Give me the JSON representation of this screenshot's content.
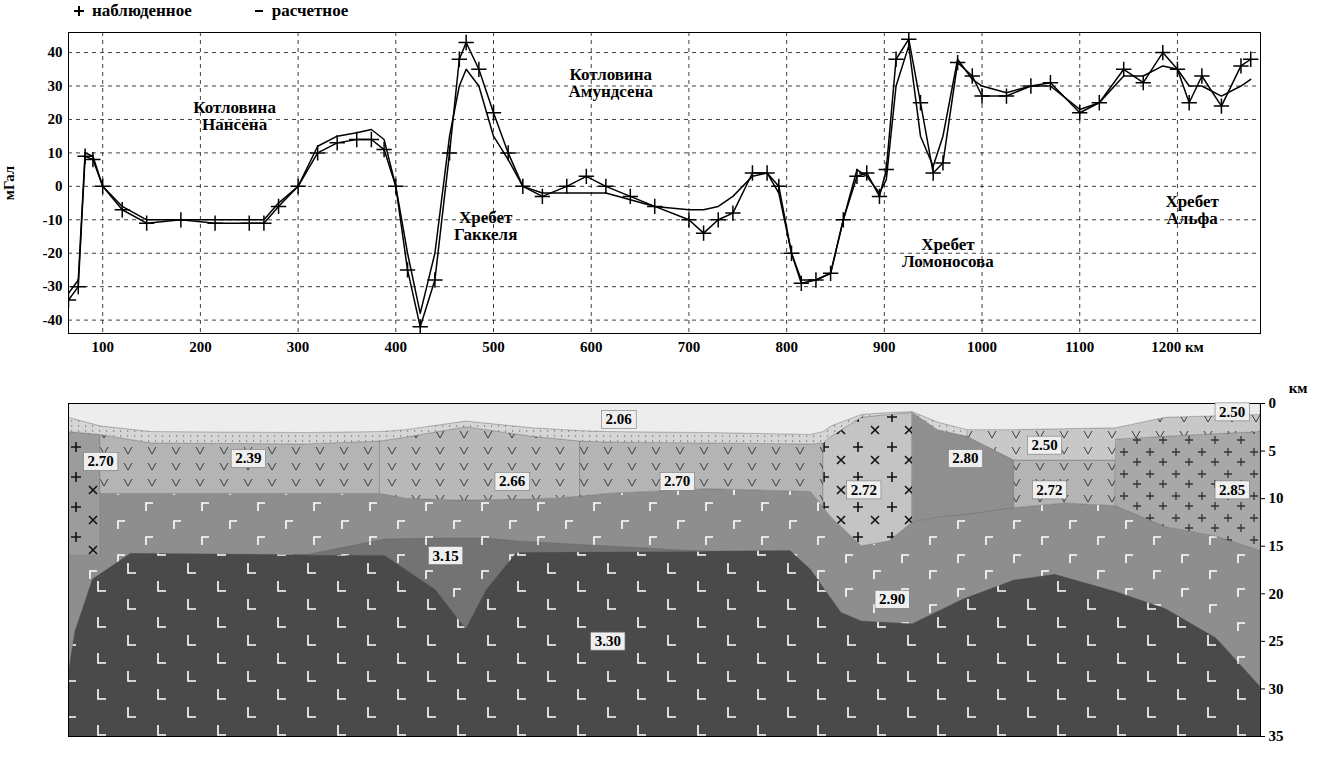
{
  "chart_data": [
    {
      "type": "line",
      "x": [
        65,
        75,
        82,
        90,
        100,
        120,
        145,
        180,
        215,
        250,
        265,
        280,
        300,
        320,
        340,
        360,
        375,
        388,
        400,
        412,
        425,
        440,
        455,
        465,
        472,
        485,
        500,
        515,
        530,
        550,
        575,
        595,
        615,
        640,
        665,
        700,
        715,
        730,
        745,
        765,
        780,
        792,
        805,
        815,
        830,
        845,
        858,
        872,
        882,
        895,
        902,
        912,
        925,
        937,
        950,
        960,
        975,
        990,
        1000,
        1025,
        1050,
        1070,
        1100,
        1120,
        1145,
        1165,
        1185,
        1200,
        1212,
        1225,
        1245,
        1265,
        1275
      ],
      "series": [
        {
          "name": "наблюденное",
          "color": "#000000",
          "marker": "plus",
          "line_style": "solid",
          "values": [
            -34,
            -30,
            9,
            8,
            0,
            -7,
            -11,
            -10,
            -11,
            -11,
            -11,
            -6,
            0,
            10,
            13,
            14,
            14,
            11,
            0,
            -25,
            -42,
            -28,
            10,
            38,
            43,
            35,
            22,
            10,
            0,
            -3,
            0,
            3,
            0,
            -3,
            -6,
            -10,
            -14,
            -10,
            -8,
            4,
            4,
            0,
            -20,
            -29,
            -28,
            -26,
            -10,
            3,
            4,
            -3,
            5,
            38,
            44,
            25,
            4,
            7,
            37,
            33,
            27,
            27,
            30,
            31,
            22,
            25,
            35,
            31,
            40,
            35,
            25,
            33,
            24,
            36,
            38
          ]
        },
        {
          "name": "расчетное",
          "color": "#000000",
          "marker": "none",
          "line_style": "solid",
          "values": [
            -32,
            -28,
            10,
            9,
            0,
            -6,
            -10,
            -10,
            -10,
            -10,
            -10,
            -5,
            0,
            12,
            15,
            16,
            17,
            14,
            0,
            -20,
            -38,
            -20,
            15,
            30,
            35,
            30,
            15,
            8,
            0,
            -2,
            -2,
            -2,
            -2,
            -4,
            -6,
            -7,
            -7,
            -6,
            -3,
            3,
            4,
            -2,
            -20,
            -28,
            -28,
            -26,
            -10,
            5,
            3,
            -2,
            2,
            30,
            42,
            15,
            6,
            15,
            38,
            32,
            30,
            28,
            30,
            30,
            23,
            25,
            33,
            33,
            36,
            35,
            30,
            30,
            27,
            30,
            32
          ]
        }
      ],
      "xlim": [
        65,
        1285
      ],
      "xticks": [
        100,
        200,
        300,
        400,
        500,
        600,
        700,
        800,
        900,
        1000,
        1100,
        {
          "value": 1200,
          "label": "1200 км"
        }
      ],
      "ylim": [
        -44,
        46
      ],
      "yticks": [
        -40,
        -30,
        -20,
        -10,
        0,
        10,
        20,
        30,
        40
      ],
      "y_label": "мГал",
      "grid": true,
      "legend": "top-left",
      "annotations": [
        {
          "text": "Котловина\nНансена",
          "x": 235,
          "y": 21
        },
        {
          "text": "Хребет\nГаккеля",
          "x": 492,
          "y": -12
        },
        {
          "text": "Котловина\nАмундсена",
          "x": 620,
          "y": 31
        },
        {
          "text": "Хребет\nЛомоносова",
          "x": 965,
          "y": -20
        },
        {
          "text": "Хребет\nАльфа",
          "x": 1215,
          "y": -7
        }
      ]
    },
    {
      "type": "section",
      "xlim": [
        65,
        1285
      ],
      "ylim": [
        0,
        35
      ],
      "yticks": [
        0,
        5,
        10,
        15,
        20,
        25,
        30,
        35
      ],
      "y_label": "км",
      "tick_labels": "y",
      "areas": [
        {
          "color": "#8e8e8e",
          "marker": "corner",
          "x": [
            65,
            98,
            98,
            389,
            410,
            460,
            565,
            617,
            720,
            825,
            846,
            877,
            905,
            929,
            981,
            1033,
            1085,
            1137,
            1188,
            1240,
            1285
          ],
          "top": [
            16,
            16,
            9.5,
            9.5,
            10,
            10.2,
            10,
            9.5,
            9,
            9.3,
            12,
            15,
            14.5,
            12.5,
            11.5,
            11,
            10.5,
            10.8,
            13,
            14,
            15.5
          ],
          "bottom": [
            35,
            35,
            35,
            35,
            35,
            35,
            35,
            35,
            35,
            35,
            35,
            35,
            35,
            35,
            35,
            35,
            35,
            35,
            35,
            35,
            35
          ]
        },
        {
          "color": "#4a4a4a",
          "marker": "L",
          "x": [
            65,
            72,
            90,
            129,
            389,
            441,
            472,
            493,
            524,
            804,
            825,
            856,
            877,
            929,
            981,
            1033,
            1075,
            1137,
            1188,
            1240,
            1285
          ],
          "top": [
            28.5,
            24,
            18.5,
            15.8,
            16,
            19.6,
            23.7,
            19.6,
            15.7,
            15.5,
            17.5,
            22,
            22.9,
            23.2,
            20.6,
            18.6,
            18,
            19.8,
            21.6,
            24.7,
            29.8
          ],
          "bottom": [
            35,
            35,
            35,
            35,
            35,
            35,
            35,
            35,
            35,
            35,
            35,
            35,
            35,
            35,
            35,
            35,
            35,
            35,
            35,
            35,
            35
          ]
        },
        {
          "color": "#737373",
          "marker": "corner",
          "x": [
            306,
            389,
            441,
            472,
            493,
            524,
            721
          ],
          "top": [
            16,
            14.3,
            14.2,
            14.2,
            14.2,
            14.5,
            15.6
          ],
          "bottom": [
            16,
            16,
            19.6,
            23.7,
            19.6,
            15.7,
            15.6
          ]
        },
        {
          "color": "#9c9c9c",
          "marker": "cross",
          "x": [
            65,
            98
          ],
          "top": [
            3,
            3.3
          ],
          "bottom": [
            16,
            16
          ]
        },
        {
          "color": "#b4b4b4",
          "marker": "v",
          "x": [
            98,
            150,
            306,
            384
          ],
          "top": [
            3.3,
            4.2,
            4.3,
            4.0
          ],
          "bottom": [
            9.5,
            9.5,
            9.5,
            9.5
          ]
        },
        {
          "color": "#b9b9b9",
          "marker": "v",
          "x": [
            384,
            410,
            472,
            540,
            589
          ],
          "top": [
            4.0,
            3.6,
            2.5,
            3.5,
            4.0
          ],
          "bottom": [
            9.5,
            10,
            10.2,
            10.1,
            9.8
          ]
        },
        {
          "color": "#b4b4b4",
          "marker": "v",
          "x": [
            589,
            617,
            720,
            825,
            838
          ],
          "top": [
            4.0,
            4.1,
            4.2,
            4.3,
            4.2
          ],
          "bottom": [
            9.8,
            9.5,
            9,
            9.3,
            11
          ]
        },
        {
          "color": "#c4c4c4",
          "marker": "cross",
          "x": [
            838,
            846,
            877,
            905,
            929
          ],
          "top": [
            4.2,
            3.5,
            1.5,
            1.2,
            1.0
          ],
          "bottom": [
            11,
            12,
            15,
            14.5,
            12.5
          ]
        },
        {
          "color": "#8f8f8f",
          "marker": "none",
          "x": [
            929,
            955,
            985,
            1033
          ],
          "top": [
            1.0,
            2.8,
            3.5,
            6.0
          ],
          "bottom": [
            12.5,
            12,
            11.7,
            11
          ]
        },
        {
          "color": "#b4b4b4",
          "marker": "v",
          "x": [
            1033,
            1085,
            1137
          ],
          "top": [
            6.0,
            6.0,
            6.0
          ],
          "bottom": [
            11,
            10.5,
            10.8
          ]
        },
        {
          "color": "#a8a8a8",
          "marker": "plus",
          "x": [
            1137,
            1188,
            1240,
            1285
          ],
          "top": [
            3.8,
            3.5,
            3.2,
            3.0
          ],
          "bottom": [
            10.8,
            13,
            14,
            15.5
          ]
        },
        {
          "color": "#c8c8c8",
          "marker": "v",
          "x": [
            985,
            1033,
            1137,
            1137,
            1188,
            1285
          ],
          "top": [
            2.8,
            2.8,
            2.6,
            2.6,
            1.5,
            1.2
          ],
          "bottom": [
            3.5,
            6.0,
            6.0,
            3.8,
            3.5,
            3.0
          ]
        },
        {
          "color": "#d6d6d6",
          "marker": "dots",
          "x": [
            65,
            98,
            150,
            306,
            384,
            410,
            472,
            540,
            589,
            617,
            720,
            825,
            838,
            846,
            877,
            905,
            929,
            955,
            985
          ],
          "top": [
            1.5,
            2.4,
            3.0,
            3.1,
            3.0,
            2.8,
            1.9,
            2.6,
            2.9,
            3.0,
            3.1,
            3.3,
            3.0,
            2.4,
            1.2,
            1.0,
            0.9,
            2.0,
            2.8
          ],
          "bottom": [
            3,
            3.3,
            4.2,
            4.3,
            4.0,
            3.6,
            2.5,
            3.5,
            4.0,
            4.1,
            4.2,
            4.3,
            4.2,
            3.5,
            1.5,
            1.2,
            1.0,
            2.8,
            3.5
          ]
        },
        {
          "color": "#ededed",
          "marker": "none",
          "x": [
            65,
            98,
            150,
            306,
            384,
            410,
            472,
            540,
            589,
            617,
            720,
            825,
            838,
            846,
            877,
            905,
            929,
            955,
            985,
            1033,
            1137,
            1188,
            1285
          ],
          "top": [
            0,
            0,
            0,
            0,
            0,
            0,
            0,
            0,
            0,
            0,
            0,
            0,
            0,
            0,
            0,
            0,
            0,
            0,
            0,
            0,
            0,
            0,
            0
          ],
          "bottom": [
            1.5,
            2.4,
            3.0,
            3.1,
            3.0,
            2.8,
            1.9,
            2.6,
            2.9,
            3.0,
            3.1,
            3.3,
            3.0,
            2.4,
            1.2,
            1.0,
            0.9,
            2.0,
            2.8,
            2.8,
            2.6,
            1.5,
            1.2
          ]
        }
      ],
      "labels": [
        {
          "text": "2.70",
          "x": 98,
          "y": 6.1
        },
        {
          "text": "2.39",
          "x": 249,
          "y": 5.8
        },
        {
          "text": "2.06",
          "x": 628,
          "y": 1.7
        },
        {
          "text": "2.66",
          "x": 519,
          "y": 8.2
        },
        {
          "text": "2.70",
          "x": 688,
          "y": 8.2
        },
        {
          "text": "3.15",
          "x": 451,
          "y": 16.0
        },
        {
          "text": "3.30",
          "x": 617,
          "y": 25
        },
        {
          "text": "2.72",
          "x": 879,
          "y": 9.1
        },
        {
          "text": "2.80",
          "x": 983,
          "y": 5.8
        },
        {
          "text": "2.50",
          "x": 1064,
          "y": 4.4
        },
        {
          "text": "2.72",
          "x": 1069,
          "y": 9.1
        },
        {
          "text": "2.85",
          "x": 1256,
          "y": 9.1
        },
        {
          "text": "2.50",
          "x": 1256,
          "y": 0.9
        },
        {
          "text": "2.90",
          "x": 908,
          "y": 20.6
        }
      ]
    }
  ]
}
